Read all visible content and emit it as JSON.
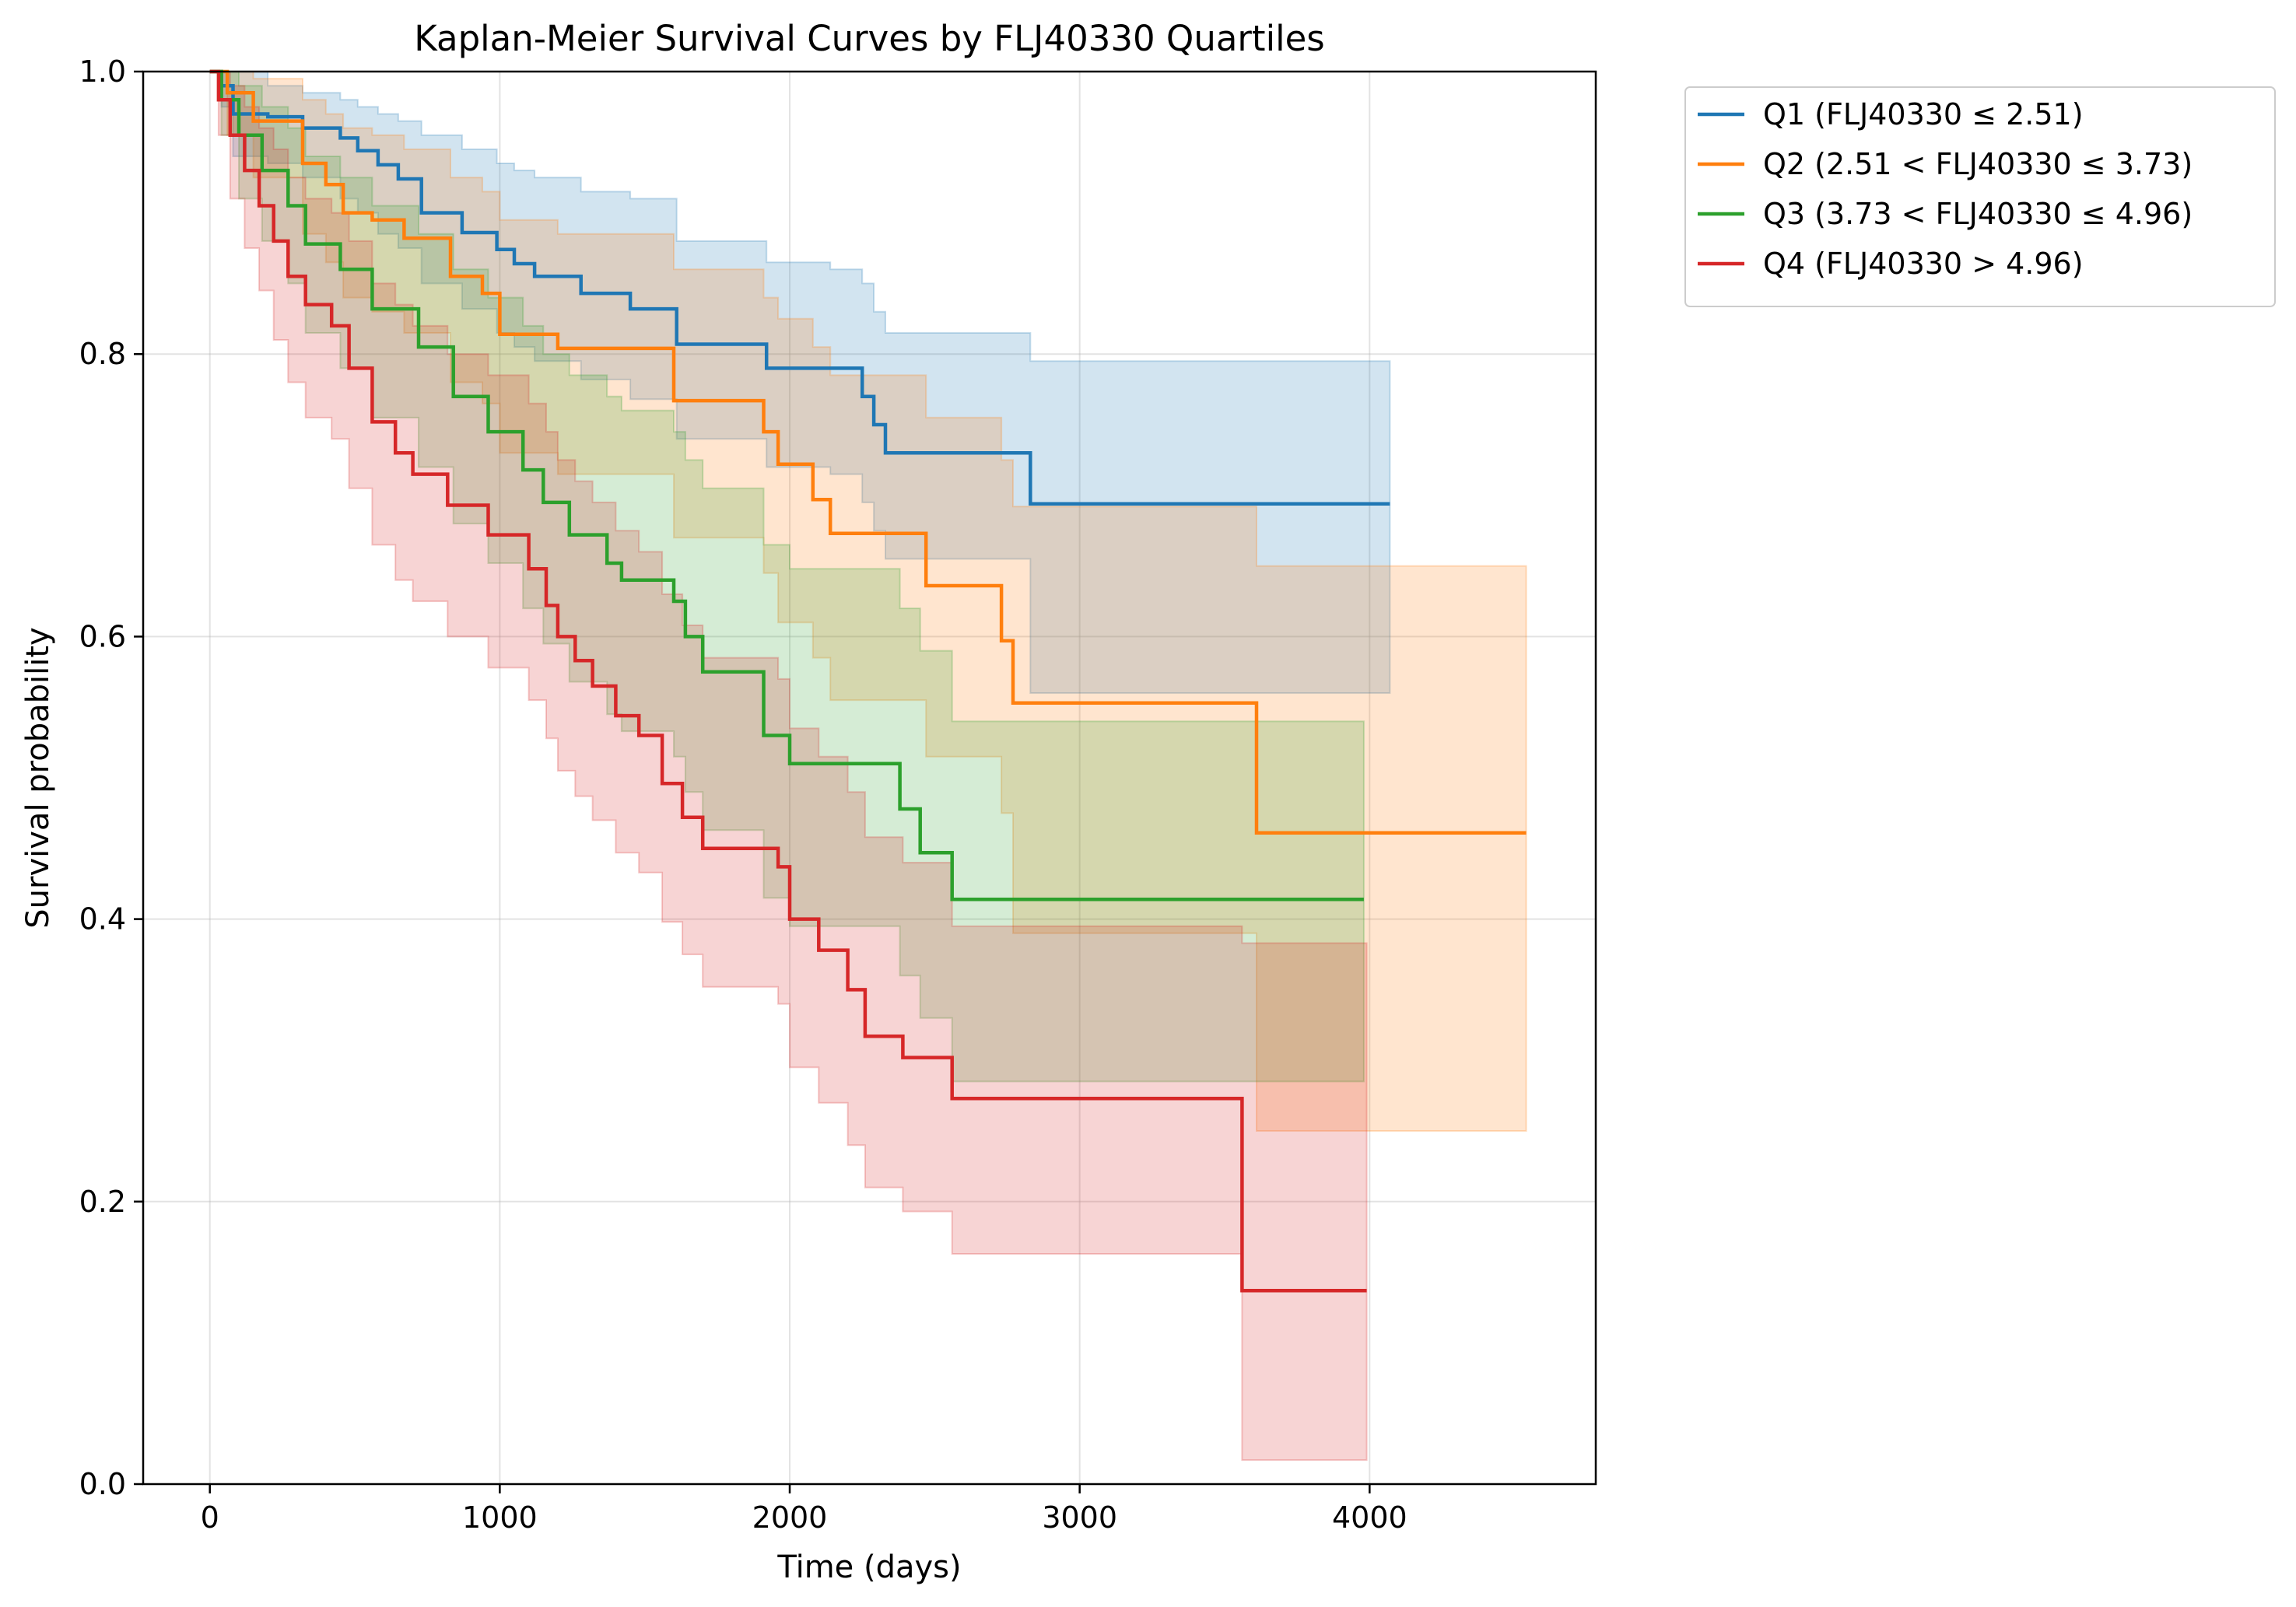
{
  "chart_data": {
    "type": "line",
    "subtype": "kaplan-meier-step",
    "title": "Kaplan-Meier Survival Curves by FLJ40330 Quartiles",
    "xlabel": "Time (days)",
    "ylabel": "Survival probability",
    "xlim": [
      -230,
      4780
    ],
    "ylim": [
      0.0,
      1.0
    ],
    "xticks": [
      0,
      1000,
      2000,
      3000,
      4000
    ],
    "yticks": [
      0.0,
      0.2,
      0.4,
      0.6,
      0.8,
      1.0
    ],
    "xtick_labels": [
      "0",
      "1000",
      "2000",
      "3000",
      "4000"
    ],
    "ytick_labels": [
      "0.0",
      "0.2",
      "0.4",
      "0.6",
      "0.8",
      "1.0"
    ],
    "grid": true,
    "legend_position": "outside-top-right",
    "series": [
      {
        "name": "Q1 (FLJ40330 ≤ 2.51)",
        "color": "#1f77b4",
        "x": [
          0,
          40,
          80,
          200,
          320,
          450,
          510,
          580,
          650,
          730,
          870,
          990,
          1050,
          1120,
          1280,
          1450,
          1610,
          1920,
          2140,
          2250,
          2290,
          2330,
          2830,
          3550,
          4070
        ],
        "y": [
          1.0,
          0.99,
          0.97,
          0.968,
          0.96,
          0.953,
          0.944,
          0.934,
          0.924,
          0.9,
          0.886,
          0.874,
          0.864,
          0.855,
          0.843,
          0.832,
          0.807,
          0.79,
          0.79,
          0.77,
          0.75,
          0.73,
          0.694,
          0.694,
          0.694
        ],
        "ci_upper": [
          1.0,
          1.0,
          1.0,
          0.99,
          0.985,
          0.98,
          0.975,
          0.97,
          0.965,
          0.955,
          0.945,
          0.935,
          0.93,
          0.925,
          0.915,
          0.91,
          0.88,
          0.865,
          0.86,
          0.85,
          0.83,
          0.815,
          0.795,
          0.795,
          0.795
        ],
        "ci_lower": [
          1.0,
          0.975,
          0.94,
          0.935,
          0.925,
          0.91,
          0.9,
          0.885,
          0.875,
          0.85,
          0.832,
          0.815,
          0.805,
          0.795,
          0.782,
          0.768,
          0.74,
          0.72,
          0.715,
          0.695,
          0.675,
          0.655,
          0.56,
          0.56,
          0.56
        ]
      },
      {
        "name": "Q2 (2.51 < FLJ40330 ≤ 3.73)",
        "color": "#ff7f0e",
        "x": [
          0,
          60,
          150,
          320,
          400,
          460,
          560,
          670,
          830,
          940,
          1000,
          1200,
          1600,
          1910,
          1960,
          2080,
          2140,
          2470,
          2730,
          2770,
          3610,
          4540
        ],
        "y": [
          1.0,
          0.985,
          0.965,
          0.935,
          0.92,
          0.9,
          0.895,
          0.882,
          0.855,
          0.843,
          0.814,
          0.804,
          0.767,
          0.745,
          0.722,
          0.697,
          0.673,
          0.636,
          0.597,
          0.553,
          0.461,
          0.461
        ],
        "ci_upper": [
          1.0,
          1.0,
          0.995,
          0.98,
          0.97,
          0.96,
          0.955,
          0.945,
          0.925,
          0.915,
          0.895,
          0.885,
          0.86,
          0.84,
          0.825,
          0.805,
          0.785,
          0.755,
          0.725,
          0.692,
          0.65,
          0.65
        ],
        "ci_lower": [
          1.0,
          0.955,
          0.925,
          0.885,
          0.865,
          0.84,
          0.83,
          0.815,
          0.78,
          0.765,
          0.73,
          0.715,
          0.67,
          0.645,
          0.61,
          0.585,
          0.555,
          0.515,
          0.475,
          0.39,
          0.25,
          0.25
        ]
      },
      {
        "name": "Q3 (3.73 < FLJ40330 ≤ 4.96)",
        "color": "#2ca02c",
        "x": [
          0,
          40,
          100,
          180,
          270,
          330,
          450,
          560,
          720,
          840,
          960,
          1080,
          1150,
          1240,
          1370,
          1420,
          1600,
          1640,
          1700,
          1910,
          2000,
          2380,
          2450,
          2560,
          3980
        ],
        "y": [
          1.0,
          0.98,
          0.955,
          0.93,
          0.905,
          0.878,
          0.86,
          0.832,
          0.805,
          0.77,
          0.745,
          0.718,
          0.695,
          0.672,
          0.652,
          0.64,
          0.625,
          0.6,
          0.575,
          0.53,
          0.51,
          0.478,
          0.447,
          0.414,
          0.414
        ],
        "ci_upper": [
          1.0,
          1.0,
          0.99,
          0.975,
          0.96,
          0.94,
          0.925,
          0.905,
          0.885,
          0.86,
          0.84,
          0.82,
          0.8,
          0.785,
          0.77,
          0.76,
          0.745,
          0.725,
          0.705,
          0.665,
          0.648,
          0.62,
          0.59,
          0.54,
          0.54
        ],
        "ci_lower": [
          1.0,
          0.955,
          0.91,
          0.88,
          0.85,
          0.815,
          0.79,
          0.755,
          0.72,
          0.68,
          0.652,
          0.62,
          0.595,
          0.568,
          0.545,
          0.533,
          0.515,
          0.49,
          0.463,
          0.415,
          0.395,
          0.36,
          0.33,
          0.285,
          0.285
        ]
      },
      {
        "name": "Q4 (FLJ40330 > 4.96)",
        "color": "#d62728",
        "x": [
          0,
          30,
          70,
          120,
          170,
          220,
          270,
          330,
          420,
          480,
          560,
          640,
          700,
          820,
          960,
          1100,
          1160,
          1200,
          1260,
          1320,
          1400,
          1480,
          1560,
          1630,
          1700,
          1960,
          2000,
          2100,
          2200,
          2260,
          2390,
          2560,
          3560,
          3990
        ],
        "y": [
          1.0,
          0.98,
          0.955,
          0.93,
          0.905,
          0.88,
          0.855,
          0.835,
          0.82,
          0.79,
          0.752,
          0.73,
          0.715,
          0.693,
          0.672,
          0.648,
          0.622,
          0.6,
          0.583,
          0.565,
          0.544,
          0.53,
          0.496,
          0.472,
          0.45,
          0.437,
          0.4,
          0.378,
          0.35,
          0.317,
          0.302,
          0.273,
          0.137,
          0.137
        ],
        "ci_upper": [
          1.0,
          1.0,
          0.99,
          0.975,
          0.96,
          0.945,
          0.925,
          0.91,
          0.9,
          0.88,
          0.85,
          0.835,
          0.82,
          0.8,
          0.785,
          0.765,
          0.745,
          0.725,
          0.71,
          0.695,
          0.675,
          0.66,
          0.63,
          0.608,
          0.585,
          0.57,
          0.535,
          0.515,
          0.49,
          0.458,
          0.44,
          0.395,
          0.383,
          0.383
        ],
        "ci_lower": [
          1.0,
          0.955,
          0.91,
          0.875,
          0.845,
          0.81,
          0.78,
          0.755,
          0.74,
          0.705,
          0.665,
          0.64,
          0.625,
          0.6,
          0.578,
          0.555,
          0.528,
          0.505,
          0.487,
          0.47,
          0.447,
          0.433,
          0.398,
          0.375,
          0.352,
          0.34,
          0.295,
          0.27,
          0.24,
          0.21,
          0.193,
          0.163,
          0.017,
          0.017
        ]
      }
    ]
  }
}
